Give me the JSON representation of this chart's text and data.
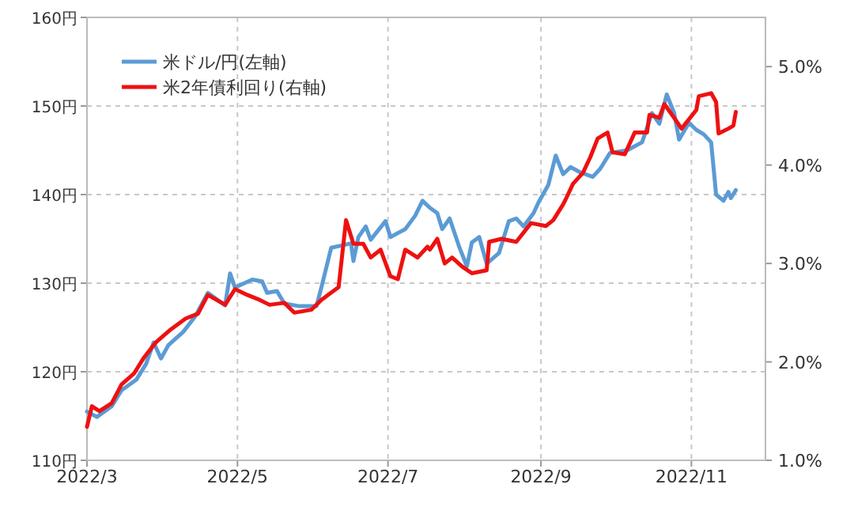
{
  "chart_data": {
    "type": "line",
    "legend": "top left",
    "grid": true,
    "line_style": "solid",
    "xlim": [
      "2022-03-01",
      "2022-12-01"
    ],
    "xticks": [
      {
        "value": "2022-03-01",
        "label": "2022/3"
      },
      {
        "value": "2022-05-01",
        "label": "2022/5"
      },
      {
        "value": "2022-07-01",
        "label": "2022/7"
      },
      {
        "value": "2022-09-01",
        "label": "2022/9"
      },
      {
        "value": "2022-11-01",
        "label": "2022/11"
      }
    ],
    "ylim": [
      110,
      160
    ],
    "yticks": [
      {
        "value": 110,
        "label": "110円"
      },
      {
        "value": 120,
        "label": "120円"
      },
      {
        "value": 130,
        "label": "130円"
      },
      {
        "value": 140,
        "label": "140円"
      },
      {
        "value": 150,
        "label": "150円"
      },
      {
        "value": 160,
        "label": "160円"
      }
    ],
    "y2lim": [
      1,
      5.5
    ],
    "y2ticks": [
      {
        "value": 1,
        "label": "1.0%"
      },
      {
        "value": 2,
        "label": "2.0%"
      },
      {
        "value": 3,
        "label": "3.0%"
      },
      {
        "value": 4,
        "label": "4.0%"
      },
      {
        "value": 5,
        "label": "5.0%"
      }
    ],
    "series": [
      {
        "name": "米ドル/円(左軸)",
        "color": "#5b9bd5",
        "x": [
          "2022-03-01",
          "2022-03-05",
          "2022-03-11",
          "2022-03-15",
          "2022-03-21",
          "2022-03-25",
          "2022-03-28",
          "2022-03-31",
          "2022-04-03",
          "2022-04-09",
          "2022-04-14",
          "2022-04-19",
          "2022-04-26",
          "2022-04-28",
          "2022-04-30",
          "2022-05-07",
          "2022-05-11",
          "2022-05-13",
          "2022-05-17",
          "2022-05-20",
          "2022-05-26",
          "2022-06-02",
          "2022-06-04",
          "2022-06-08",
          "2022-06-13",
          "2022-06-16",
          "2022-06-17",
          "2022-06-19",
          "2022-06-22",
          "2022-06-24",
          "2022-06-30",
          "2022-07-02",
          "2022-07-08",
          "2022-07-12",
          "2022-07-15",
          "2022-07-18",
          "2022-07-21",
          "2022-07-23",
          "2022-07-26",
          "2022-07-30",
          "2022-08-02",
          "2022-08-04",
          "2022-08-07",
          "2022-08-10",
          "2022-08-15",
          "2022-08-19",
          "2022-08-22",
          "2022-08-25",
          "2022-08-29",
          "2022-08-31",
          "2022-09-04",
          "2022-09-07",
          "2022-09-10",
          "2022-09-13",
          "2022-09-17",
          "2022-09-22",
          "2022-09-25",
          "2022-09-29",
          "2022-10-06",
          "2022-10-12",
          "2022-10-16",
          "2022-10-19",
          "2022-10-22",
          "2022-10-25",
          "2022-10-27",
          "2022-10-31",
          "2022-11-03",
          "2022-11-06",
          "2022-11-09",
          "2022-11-11",
          "2022-11-14",
          "2022-11-16",
          "2022-11-17",
          "2022-11-19"
        ],
        "values": [
          115.5,
          114.9,
          116.1,
          117.9,
          119.1,
          120.9,
          123.3,
          121.5,
          123.0,
          124.5,
          126.3,
          128.9,
          127.5,
          131.1,
          129.5,
          130.4,
          130.2,
          128.9,
          129.1,
          127.7,
          127.4,
          127.4,
          129.5,
          134.0,
          134.3,
          134.5,
          132.5,
          135.2,
          136.4,
          134.9,
          137.0,
          135.2,
          136.1,
          137.6,
          139.3,
          138.5,
          137.9,
          136.1,
          137.3,
          134.0,
          131.9,
          134.6,
          135.2,
          132.2,
          133.4,
          137.0,
          137.3,
          136.4,
          137.9,
          139.1,
          141.1,
          144.4,
          142.3,
          143.1,
          142.5,
          142.0,
          142.9,
          144.7,
          145.0,
          145.9,
          149.2,
          148.0,
          151.3,
          149.2,
          146.2,
          148.1,
          147.3,
          146.8,
          145.9,
          140.0,
          139.3,
          140.3,
          139.6,
          140.5
        ]
      },
      {
        "name": "米2年債利回り(右軸)",
        "color": "#ee1111",
        "axis": "y2",
        "x": [
          "2022-03-01",
          "2022-03-03",
          "2022-03-06",
          "2022-03-11",
          "2022-03-15",
          "2022-03-20",
          "2022-03-24",
          "2022-03-29",
          "2022-04-04",
          "2022-04-10",
          "2022-04-15",
          "2022-04-19",
          "2022-04-26",
          "2022-04-30",
          "2022-05-05",
          "2022-05-10",
          "2022-05-14",
          "2022-05-20",
          "2022-05-24",
          "2022-05-31",
          "2022-06-04",
          "2022-06-11",
          "2022-06-14",
          "2022-06-17",
          "2022-06-21",
          "2022-06-24",
          "2022-06-28",
          "2022-07-02",
          "2022-07-05",
          "2022-07-08",
          "2022-07-13",
          "2022-07-17",
          "2022-07-18",
          "2022-07-21",
          "2022-07-24",
          "2022-07-27",
          "2022-07-31",
          "2022-08-04",
          "2022-08-10",
          "2022-08-11",
          "2022-08-16",
          "2022-08-22",
          "2022-08-28",
          "2022-09-03",
          "2022-09-06",
          "2022-09-10",
          "2022-09-11",
          "2022-09-14",
          "2022-09-18",
          "2022-09-21",
          "2022-09-24",
          "2022-09-28",
          "2022-09-30",
          "2022-10-05",
          "2022-10-09",
          "2022-10-14",
          "2022-10-15",
          "2022-10-19",
          "2022-10-21",
          "2022-10-25",
          "2022-10-28",
          "2022-11-03",
          "2022-11-04",
          "2022-11-09",
          "2022-11-11",
          "2022-11-12",
          "2022-11-16",
          "2022-11-18",
          "2022-11-19"
        ],
        "values": [
          1.34,
          1.55,
          1.5,
          1.58,
          1.77,
          1.88,
          2.04,
          2.2,
          2.33,
          2.44,
          2.49,
          2.68,
          2.58,
          2.74,
          2.68,
          2.63,
          2.58,
          2.6,
          2.5,
          2.53,
          2.63,
          2.76,
          3.44,
          3.2,
          3.2,
          3.06,
          3.14,
          2.87,
          2.84,
          3.14,
          3.06,
          3.17,
          3.14,
          3.25,
          3.0,
          3.06,
          2.97,
          2.9,
          2.93,
          3.22,
          3.25,
          3.22,
          3.41,
          3.38,
          3.44,
          3.6,
          3.65,
          3.81,
          3.92,
          4.08,
          4.27,
          4.33,
          4.13,
          4.11,
          4.33,
          4.33,
          4.51,
          4.48,
          4.62,
          4.48,
          4.37,
          4.56,
          4.7,
          4.73,
          4.64,
          4.32,
          4.37,
          4.4,
          4.54
        ]
      }
    ]
  }
}
